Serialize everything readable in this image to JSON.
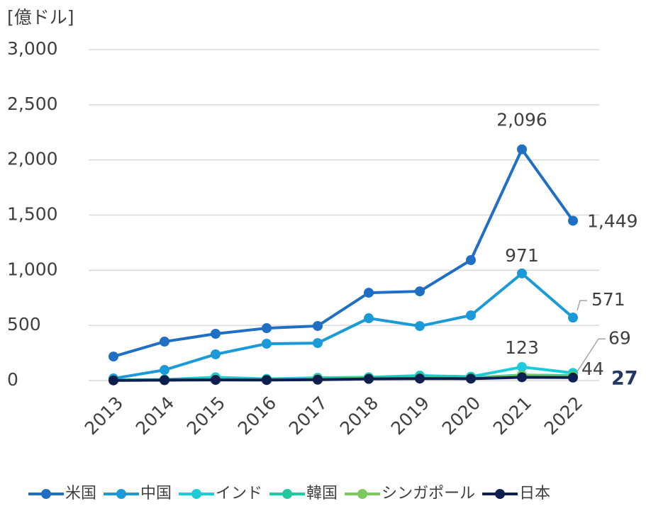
{
  "chart_data": {
    "type": "line",
    "y_axis_label": "[億ドル]",
    "categories": [
      "2013",
      "2014",
      "2015",
      "2016",
      "2017",
      "2018",
      "2019",
      "2020",
      "2021",
      "2022"
    ],
    "ylim": [
      0,
      3000
    ],
    "yticks": [
      0,
      {
        "value": 500,
        "label": "500"
      },
      {
        "value": 1000,
        "label": "1,000"
      },
      {
        "value": 1500,
        "label": "1,500"
      },
      {
        "value": 2000,
        "label": "2,000"
      },
      {
        "value": 2500,
        "label": "2,500"
      },
      {
        "value": 3000,
        "label": "3,000"
      }
    ],
    "grid": true,
    "legend": "bottom",
    "series": [
      {
        "name": "米国",
        "color": "#1f6fc5",
        "values": [
          218,
          353,
          424,
          475,
          495,
          796,
          809,
          1092,
          2096,
          1449
        ],
        "value_labels": [
          null,
          null,
          null,
          null,
          null,
          null,
          null,
          null,
          "2,096",
          "1,449"
        ]
      },
      {
        "name": "中国",
        "color": "#1a9ad8",
        "values": [
          19,
          96,
          238,
          334,
          340,
          565,
          494,
          591,
          971,
          571
        ],
        "value_labels": [
          null,
          null,
          null,
          null,
          null,
          null,
          null,
          null,
          "971",
          "571"
        ]
      },
      {
        "name": "インド",
        "color": "#1ccad8",
        "values": [
          5,
          10,
          30,
          15,
          25,
          30,
          45,
          35,
          123,
          69
        ],
        "value_labels": [
          null,
          null,
          null,
          null,
          null,
          null,
          null,
          null,
          "123",
          "69"
        ]
      },
      {
        "name": "韓国",
        "color": "#1ec8a0",
        "values": [
          3,
          5,
          10,
          8,
          15,
          20,
          30,
          25,
          50,
          44
        ],
        "value_labels": [
          null,
          null,
          null,
          null,
          null,
          null,
          null,
          null,
          null,
          "44"
        ]
      },
      {
        "name": "シンガポール",
        "color": "#7cc85c",
        "values": [
          2,
          4,
          8,
          6,
          12,
          18,
          22,
          20,
          45,
          38
        ],
        "value_labels": [
          null,
          null,
          null,
          null,
          null,
          null,
          null,
          null,
          null,
          null
        ]
      },
      {
        "name": "日本",
        "color": "#0d1f4f",
        "values": [
          2,
          4,
          6,
          5,
          8,
          15,
          18,
          17,
          30,
          27
        ],
        "value_labels": [
          null,
          null,
          null,
          null,
          null,
          null,
          null,
          null,
          null,
          "27"
        ]
      }
    ]
  }
}
